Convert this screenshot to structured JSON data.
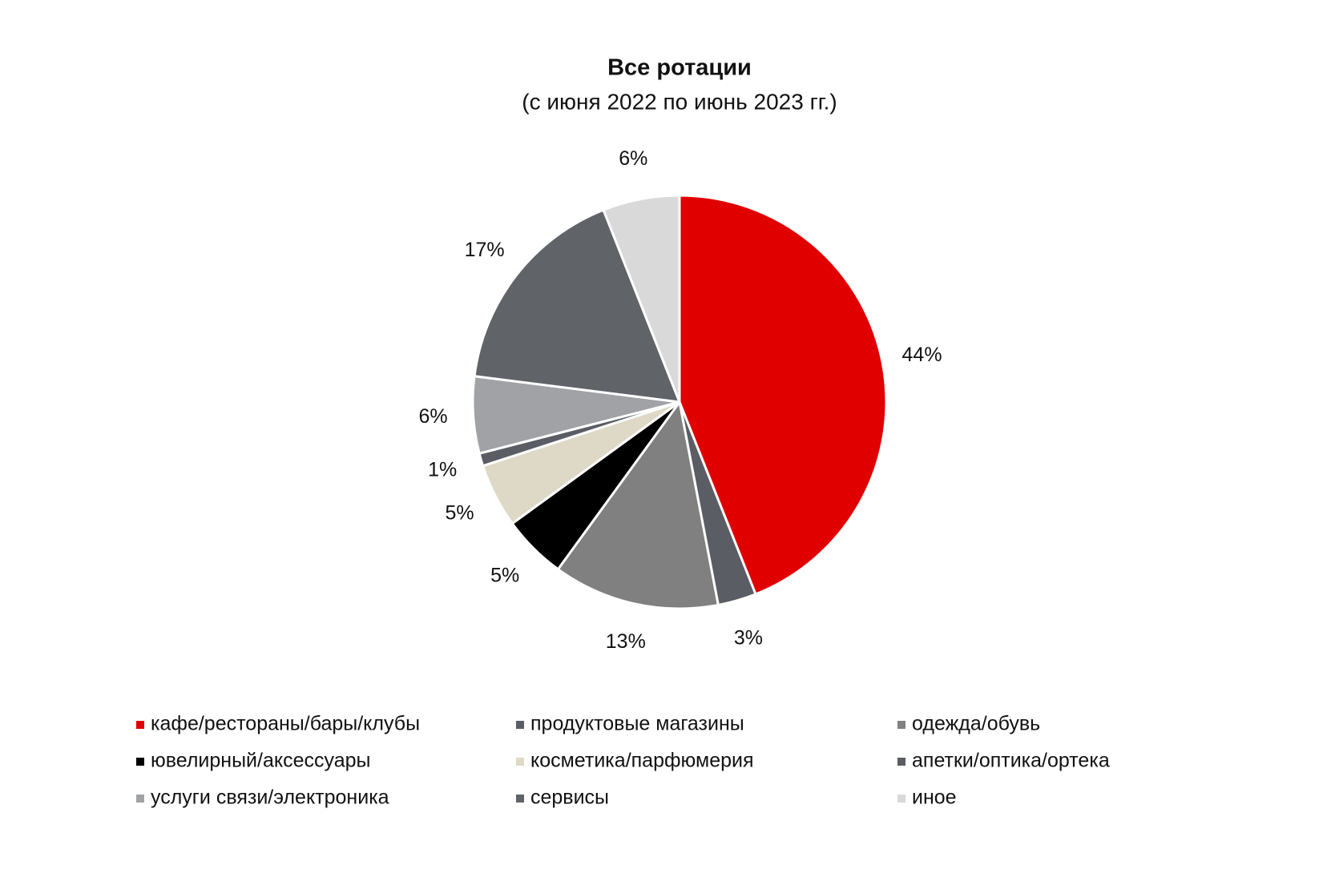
{
  "chart_data": {
    "type": "pie",
    "title": "Все ротации",
    "subtitle": "(с июня 2022 по июнь 2023 гг.)",
    "categories": [
      "кафе/рестораны/бары/клубы",
      "продуктовые магазины",
      "одежда/обувь",
      "ювелирный/аксессуары",
      "косметика/парфюмерия",
      "апетки/оптика/ортека",
      "услуги связи/электроника",
      "сервисы",
      "иное"
    ],
    "values": [
      44,
      3,
      13,
      5,
      5,
      1,
      6,
      17,
      6
    ],
    "value_labels": [
      "44%",
      "3%",
      "13%",
      "5%",
      "5%",
      "1%",
      "6%",
      "17%",
      "6%"
    ],
    "colors": [
      "#e00000",
      "#5a5d63",
      "#808080",
      "#000000",
      "#ddd9c6",
      "#5a5d63",
      "#a0a2a6",
      "#606368",
      "#d9d9d9"
    ]
  }
}
